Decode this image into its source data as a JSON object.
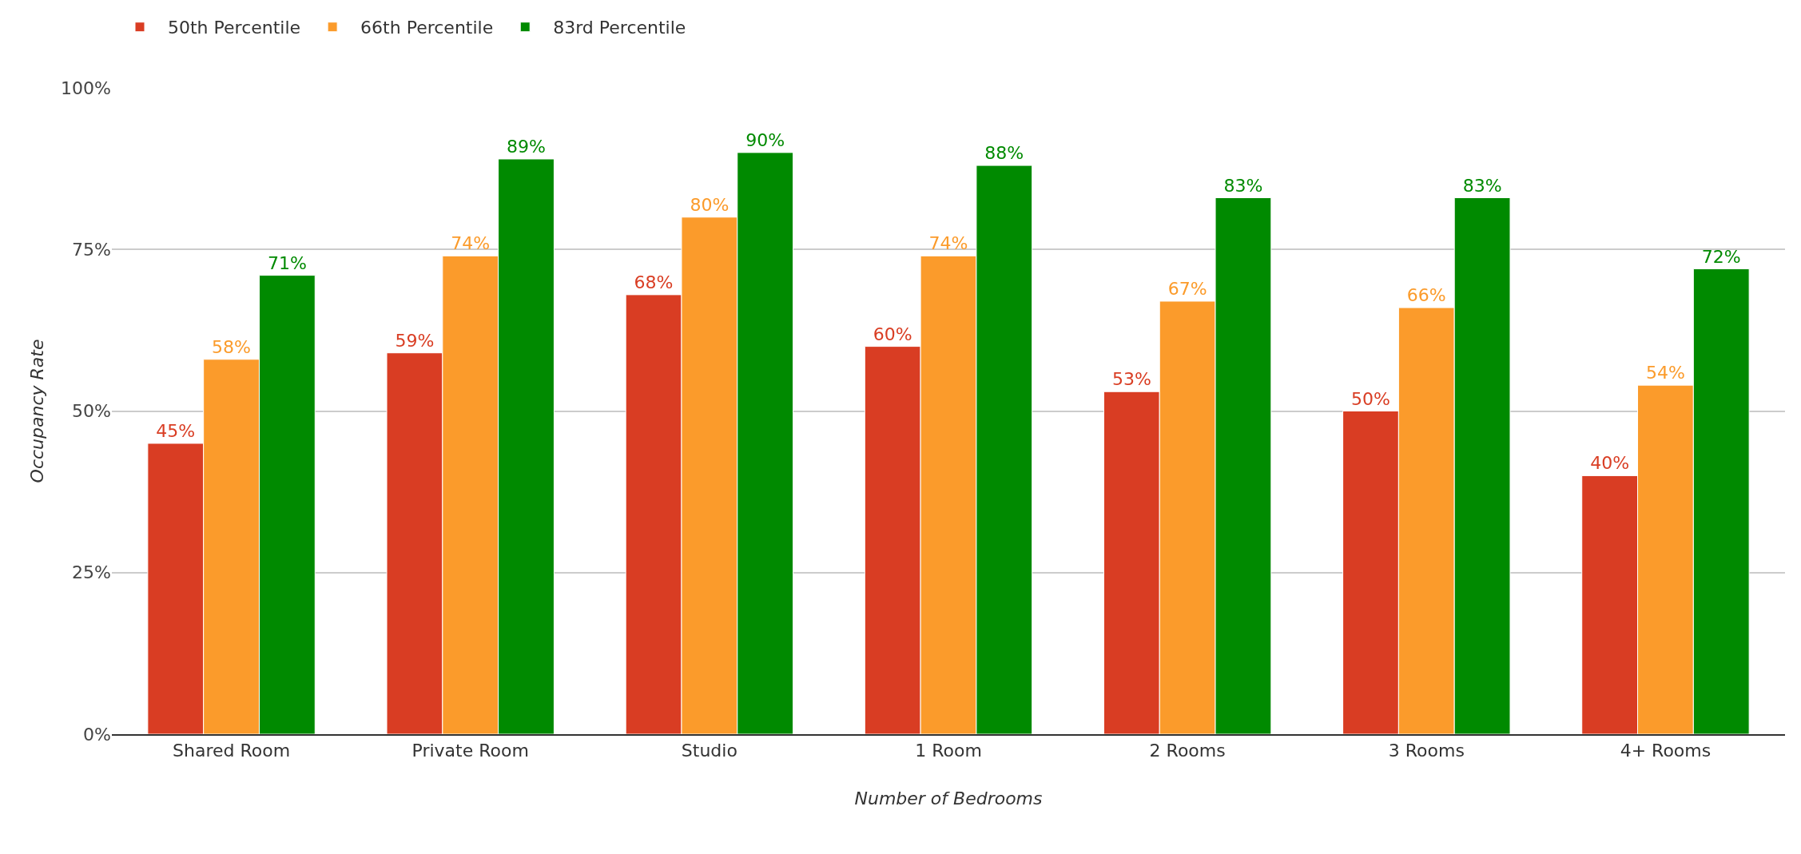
{
  "chart_data": {
    "type": "bar",
    "xlabel": "Number of Bedrooms",
    "ylabel": "Occupancy Rate",
    "categories": [
      "Shared Room",
      "Private Room",
      "Studio",
      "1 Room",
      "2 Rooms",
      "3 Rooms",
      "4+ Rooms"
    ],
    "series": [
      {
        "name": "50th Percentile",
        "color": "#d93d23",
        "values": [
          45,
          59,
          68,
          60,
          53,
          50,
          40
        ],
        "value_labels": [
          "45%",
          "59%",
          "68%",
          "60%",
          "53%",
          "50%",
          "40%"
        ]
      },
      {
        "name": "66th Percentile",
        "color": "#fb9b2b",
        "values": [
          58,
          74,
          80,
          74,
          67,
          66,
          54
        ],
        "value_labels": [
          "58%",
          "74%",
          "80%",
          "74%",
          "67%",
          "66%",
          "54%"
        ]
      },
      {
        "name": "83rd Percentile",
        "color": "#008a00",
        "values": [
          71,
          89,
          90,
          88,
          83,
          83,
          72
        ],
        "value_labels": [
          "71%",
          "89%",
          "90%",
          "88%",
          "83%",
          "83%",
          "72%"
        ]
      }
    ],
    "ylim": [
      0,
      100
    ],
    "yticks": [
      {
        "value": 0,
        "label": "0%"
      },
      {
        "value": 25,
        "label": "25%"
      },
      {
        "value": 50,
        "label": "50%"
      },
      {
        "value": 75,
        "label": "75%"
      },
      {
        "value": 100,
        "label": "100%"
      }
    ],
    "grid": "y",
    "legend": "top left"
  }
}
